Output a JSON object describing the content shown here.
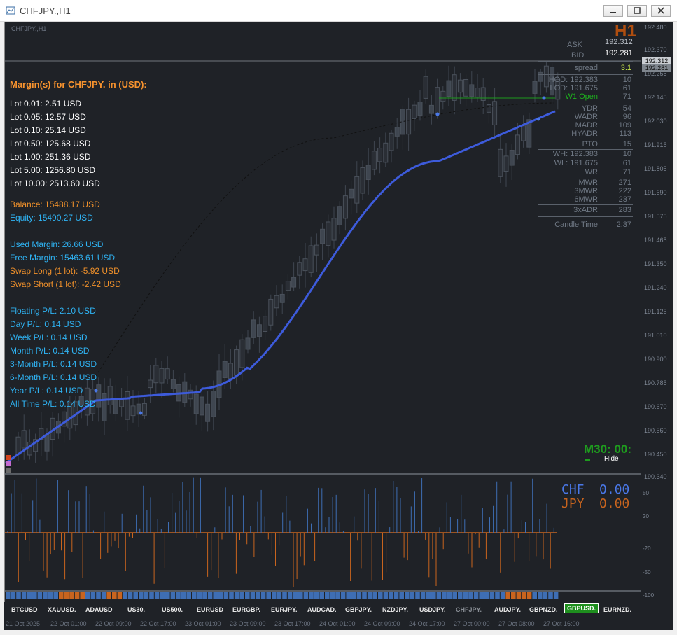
{
  "window": {
    "title": "CHFJPY.,H1"
  },
  "chart": {
    "subtitle": "CHFJPY.,H1",
    "timeframe": "H1",
    "ask_label": "ASK",
    "ask": "192.312",
    "bid_label": "BID",
    "bid": "192.281"
  },
  "margin": {
    "header": "Margin(s) for CHFJPY. in (USD):",
    "lots": [
      "Lot 0.01: 2.51 USD",
      "Lot 0.05: 12.57 USD",
      "Lot 0.10: 25.14 USD",
      "Lot 0.50: 125.68 USD",
      "Lot 1.00: 251.36 USD",
      "Lot 5.00: 1256.80 USD",
      "Lot 10.00: 2513.60 USD"
    ],
    "balance": "Balance: 15488.17 USD",
    "equity": "Equity: 15490.27 USD",
    "used_margin": "Used Margin: 26.66 USD",
    "free_margin": "Free Margin: 15463.61 USD",
    "swap_long": "Swap Long (1 lot): -5.92 USD",
    "swap_short": "Swap Short (1 lot): -2.42 USD",
    "pl": [
      "Floating P/L: 2.10 USD",
      "Day P/L: 0.14 USD",
      "Week P/L: 0.14 USD",
      "Month P/L: 0.14 USD",
      "3-Month P/L: 0.14 USD",
      "6-Month P/L: 0.14 USD",
      "Year P/L: 0.14 USD",
      "All Time P/L: 0.14 USD"
    ]
  },
  "stats": {
    "spread_label": "spread",
    "spread": "3.1",
    "hod_label": "HOD: 192.383",
    "hod": "10",
    "lod_label": "LOD: 191.675",
    "lod": "61",
    "w1_open": "W1 Open",
    "dr": "71",
    "ydr_label": "YDR",
    "ydr": "54",
    "wadr_label": "WADR",
    "wadr": "96",
    "madr_label": "MADR",
    "madr": "109",
    "hyadr_label": "HYADR",
    "hyadr": "113",
    "pto_label": "PTO",
    "pto": "15",
    "wh_label": "WH: 192.383",
    "wh": "10",
    "wl_label": "WL: 191.675",
    "wl": "61",
    "wr_label": "WR",
    "wr": "71",
    "mwr_label": "MWR",
    "mwr": "271",
    "mwr3_label": "3MWR",
    "mwr3": "222",
    "mwr6_label": "6MWR",
    "mwr6": "237",
    "adr3_label": "3xADR",
    "adr3": "283",
    "candle_label": "Candle Time",
    "candle": "2:37"
  },
  "timer": {
    "text": "M30: 00:",
    "hide": "Hide"
  },
  "currency_strength": {
    "chf_label": "CHF",
    "chf_value": "0.00",
    "jpy_label": "JPY",
    "jpy_value": "0.00",
    "chf_color": "#4a78e8",
    "jpy_color": "#c8641e"
  },
  "price_axis": [
    "192.480",
    "192.370",
    "192.255",
    "192.145",
    "192.030",
    "191.915",
    "191.805",
    "191.690",
    "191.575",
    "191.465",
    "191.350",
    "191.240",
    "191.125",
    "191.010",
    "190.900",
    "190.785",
    "190.670",
    "190.560",
    "190.450",
    "190.340"
  ],
  "price_tags": {
    "ask": "192.312",
    "bid": "192.281"
  },
  "sub_axis": [
    "50",
    "20",
    "-20",
    "-50",
    "-100"
  ],
  "time_axis": [
    "21 Oct 2025",
    "22 Oct 01:00",
    "22 Oct 09:00",
    "22 Oct 17:00",
    "23 Oct 01:00",
    "23 Oct 09:00",
    "23 Oct 17:00",
    "24 Oct 01:00",
    "24 Oct 09:00",
    "24 Oct 17:00",
    "27 Oct 00:00",
    "27 Oct 08:00",
    "27 Oct 16:00"
  ],
  "symbols": [
    "BTCUSD",
    "XAUUSD.",
    "ADAUSD",
    "US30.",
    "US500.",
    "EURUSD",
    "EURGBP.",
    "EURJPY.",
    "AUDCAD.",
    "GBPJPY.",
    "NZDJPY.",
    "USDJPY.",
    "CHFJPY.",
    "AUDJPY.",
    "GBPNZD.",
    "GBPUSD.",
    "EURNZD."
  ],
  "colors": {
    "bull": "#3f4650",
    "ma": "#3d5bdb",
    "histogram_up": "#3e6eb4",
    "histogram_down": "#c8641e",
    "w1_line": "#1e9b1e"
  }
}
